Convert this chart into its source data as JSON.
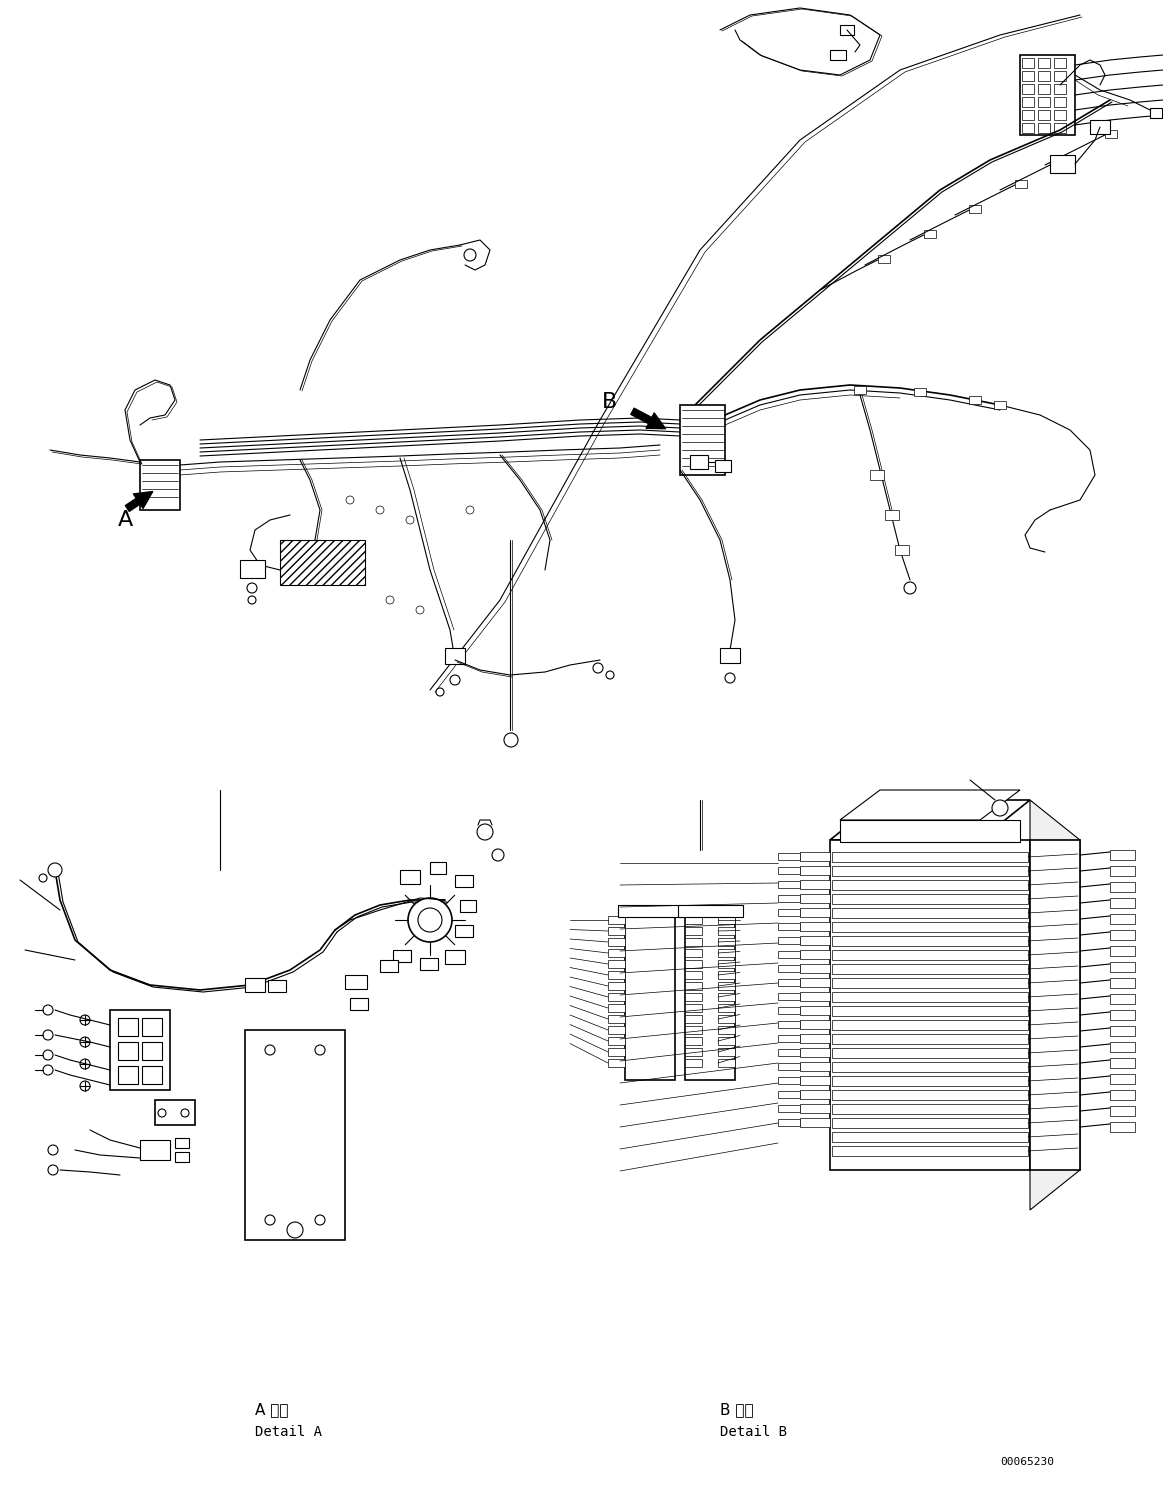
{
  "background_color": "#ffffff",
  "line_color": "#000000",
  "fig_width": 11.63,
  "fig_height": 14.88,
  "dpi": 100,
  "part_number": "00065230",
  "detail_a_label_japanese": "A 詳細",
  "detail_a_label_english": "Detail A",
  "detail_b_label_japanese": "B 詳細",
  "detail_b_label_english": "Detail B"
}
